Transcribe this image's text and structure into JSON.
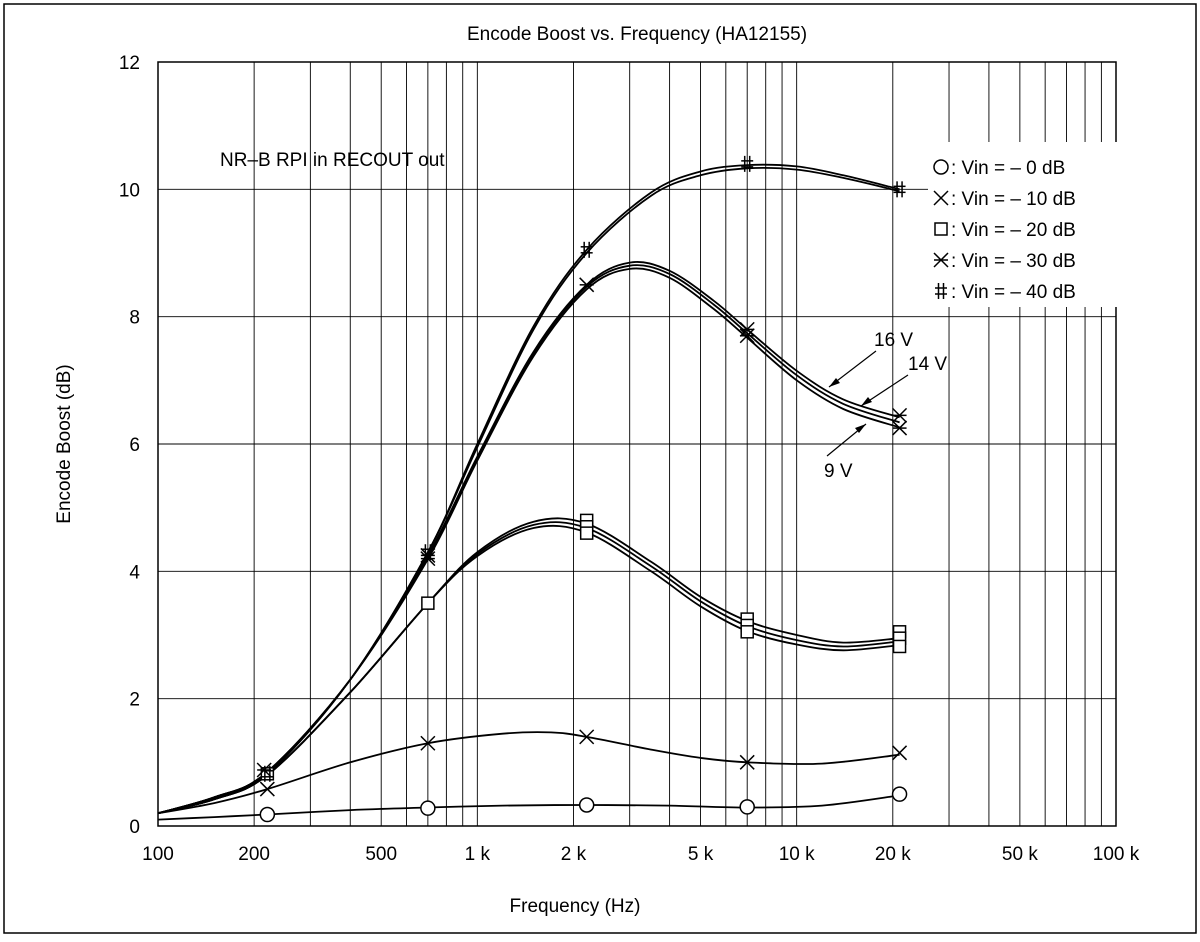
{
  "chart_data": {
    "type": "line",
    "title": "Encode Boost vs. Frequency (HA12155)",
    "xlabel": "Frequency (Hz)",
    "ylabel": "Encode Boost (dB)",
    "xscale": "log",
    "xlim": [
      100,
      100000
    ],
    "ylim": [
      0,
      12
    ],
    "grid": true,
    "legend_position": "top-right",
    "x_tick_labels": [
      {
        "value": 100,
        "label": "100"
      },
      {
        "value": 200,
        "label": "200"
      },
      {
        "value": 500,
        "label": "500"
      },
      {
        "value": 1000,
        "label": "1 k"
      },
      {
        "value": 2000,
        "label": "2 k"
      },
      {
        "value": 5000,
        "label": "5 k"
      },
      {
        "value": 10000,
        "label": "10 k"
      },
      {
        "value": 20000,
        "label": "20 k"
      },
      {
        "value": 50000,
        "label": "50 k"
      },
      {
        "value": 100000,
        "label": "100 k"
      }
    ],
    "y_ticks": [
      0,
      2,
      4,
      6,
      8,
      10,
      12
    ],
    "annotations": {
      "condition": "NR–B  RPI in RECOUT out",
      "supply_16v": "16 V",
      "supply_14v": "14 V",
      "supply_9v": "9 V"
    },
    "series": [
      {
        "name": ": Vin = – 0 dB",
        "marker": "circle",
        "points": [
          [
            220,
            0.18
          ],
          [
            700,
            0.28
          ],
          [
            2200,
            0.33
          ],
          [
            7000,
            0.3
          ],
          [
            21000,
            0.5
          ]
        ],
        "curves": [
          [
            [
              100,
              0.1
            ],
            [
              150,
              0.14
            ],
            [
              220,
              0.18
            ],
            [
              400,
              0.25
            ],
            [
              700,
              0.29
            ],
            [
              1200,
              0.32
            ],
            [
              2200,
              0.33
            ],
            [
              4000,
              0.32
            ],
            [
              7000,
              0.29
            ],
            [
              12000,
              0.32
            ],
            [
              21000,
              0.48
            ]
          ]
        ]
      },
      {
        "name": ": Vin = – 10 dB",
        "marker": "cross",
        "points": [
          [
            220,
            0.58
          ],
          [
            700,
            1.3
          ],
          [
            2200,
            1.4
          ],
          [
            7000,
            1.0
          ],
          [
            21000,
            1.15
          ]
        ],
        "curves": [
          [
            [
              100,
              0.2
            ],
            [
              150,
              0.36
            ],
            [
              220,
              0.58
            ],
            [
              400,
              1.0
            ],
            [
              700,
              1.3
            ],
            [
              1200,
              1.45
            ],
            [
              1700,
              1.47
            ],
            [
              2200,
              1.4
            ],
            [
              3500,
              1.2
            ],
            [
              5000,
              1.07
            ],
            [
              7000,
              1.0
            ],
            [
              12000,
              0.98
            ],
            [
              21000,
              1.12
            ]
          ]
        ]
      },
      {
        "name": ": Vin = – 20 dB",
        "marker": "square",
        "points": [
          [
            220,
            0.82
          ],
          [
            700,
            3.5
          ],
          [
            2200,
            4.8
          ],
          [
            2200,
            4.7
          ],
          [
            2200,
            4.6
          ],
          [
            7000,
            3.25
          ],
          [
            7000,
            3.15
          ],
          [
            7000,
            3.05
          ],
          [
            21000,
            3.05
          ],
          [
            21000,
            2.95
          ],
          [
            21000,
            2.82
          ]
        ],
        "curves": [
          [
            [
              100,
              0.2
            ],
            [
              150,
              0.42
            ],
            [
              220,
              0.8
            ],
            [
              400,
              2.1
            ],
            [
              700,
              3.5
            ],
            [
              1000,
              4.3
            ],
            [
              1500,
              4.78
            ],
            [
              2200,
              4.75
            ],
            [
              3500,
              4.15
            ],
            [
              5000,
              3.6
            ],
            [
              7000,
              3.22
            ],
            [
              10000,
              3.0
            ],
            [
              14000,
              2.88
            ],
            [
              21000,
              2.95
            ]
          ],
          [
            [
              100,
              0.2
            ],
            [
              150,
              0.42
            ],
            [
              220,
              0.8
            ],
            [
              400,
              2.1
            ],
            [
              700,
              3.5
            ],
            [
              1000,
              4.27
            ],
            [
              1500,
              4.73
            ],
            [
              2200,
              4.68
            ],
            [
              3500,
              4.08
            ],
            [
              5000,
              3.53
            ],
            [
              7000,
              3.14
            ],
            [
              10000,
              2.92
            ],
            [
              14000,
              2.82
            ],
            [
              21000,
              2.9
            ]
          ],
          [
            [
              100,
              0.2
            ],
            [
              150,
              0.42
            ],
            [
              220,
              0.8
            ],
            [
              400,
              2.1
            ],
            [
              700,
              3.5
            ],
            [
              1000,
              4.24
            ],
            [
              1500,
              4.68
            ],
            [
              2200,
              4.61
            ],
            [
              3500,
              4.0
            ],
            [
              5000,
              3.45
            ],
            [
              7000,
              3.06
            ],
            [
              10000,
              2.85
            ],
            [
              14000,
              2.76
            ],
            [
              21000,
              2.84
            ]
          ]
        ]
      },
      {
        "name": ": Vin = – 30 dB",
        "marker": "asterisk",
        "points": [
          [
            215,
            0.88
          ],
          [
            700,
            4.25
          ],
          [
            700,
            4.2
          ],
          [
            2200,
            8.5
          ],
          [
            7000,
            7.8
          ],
          [
            7000,
            7.7
          ],
          [
            21000,
            6.45
          ],
          [
            21000,
            6.25
          ]
        ],
        "curves": [
          [
            [
              100,
              0.2
            ],
            [
              150,
              0.45
            ],
            [
              220,
              0.85
            ],
            [
              400,
              2.3
            ],
            [
              700,
              4.25
            ],
            [
              1000,
              5.8
            ],
            [
              1500,
              7.45
            ],
            [
              2200,
              8.5
            ],
            [
              3000,
              8.85
            ],
            [
              4000,
              8.72
            ],
            [
              5500,
              8.25
            ],
            [
              7000,
              7.8
            ],
            [
              10000,
              7.15
            ],
            [
              14000,
              6.7
            ],
            [
              21000,
              6.42
            ]
          ],
          [
            [
              100,
              0.2
            ],
            [
              150,
              0.45
            ],
            [
              220,
              0.85
            ],
            [
              400,
              2.3
            ],
            [
              700,
              4.22
            ],
            [
              1000,
              5.77
            ],
            [
              1500,
              7.42
            ],
            [
              2200,
              8.47
            ],
            [
              3000,
              8.8
            ],
            [
              4000,
              8.67
            ],
            [
              5500,
              8.19
            ],
            [
              7000,
              7.74
            ],
            [
              10000,
              7.08
            ],
            [
              14000,
              6.63
            ],
            [
              21000,
              6.34
            ]
          ],
          [
            [
              100,
              0.2
            ],
            [
              150,
              0.45
            ],
            [
              220,
              0.85
            ],
            [
              400,
              2.3
            ],
            [
              700,
              4.19
            ],
            [
              1000,
              5.74
            ],
            [
              1500,
              7.38
            ],
            [
              2200,
              8.43
            ],
            [
              3000,
              8.75
            ],
            [
              4000,
              8.61
            ],
            [
              5500,
              8.12
            ],
            [
              7000,
              7.67
            ],
            [
              10000,
              7.0
            ],
            [
              14000,
              6.55
            ],
            [
              21000,
              6.26
            ]
          ]
        ]
      },
      {
        "name": ": Vin = – 40 dB",
        "marker": "hash",
        "points": [
          [
            220,
            0.82
          ],
          [
            700,
            4.3
          ],
          [
            2200,
            9.05
          ],
          [
            7000,
            10.4
          ],
          [
            21000,
            10.0
          ]
        ],
        "curves": [
          [
            [
              100,
              0.2
            ],
            [
              150,
              0.45
            ],
            [
              220,
              0.82
            ],
            [
              400,
              2.3
            ],
            [
              700,
              4.3
            ],
            [
              1000,
              6.0
            ],
            [
              1500,
              7.85
            ],
            [
              2200,
              9.05
            ],
            [
              3500,
              9.95
            ],
            [
              5000,
              10.28
            ],
            [
              7000,
              10.38
            ],
            [
              10000,
              10.36
            ],
            [
              14000,
              10.22
            ],
            [
              21000,
              10.0
            ]
          ],
          [
            [
              100,
              0.2
            ],
            [
              150,
              0.45
            ],
            [
              220,
              0.82
            ],
            [
              400,
              2.3
            ],
            [
              700,
              4.3
            ],
            [
              1000,
              5.95
            ],
            [
              1500,
              7.8
            ],
            [
              2200,
              9.0
            ],
            [
              3500,
              9.9
            ],
            [
              5000,
              10.22
            ],
            [
              7000,
              10.33
            ],
            [
              10000,
              10.31
            ],
            [
              14000,
              10.18
            ],
            [
              21000,
              9.97
            ]
          ]
        ]
      }
    ]
  }
}
